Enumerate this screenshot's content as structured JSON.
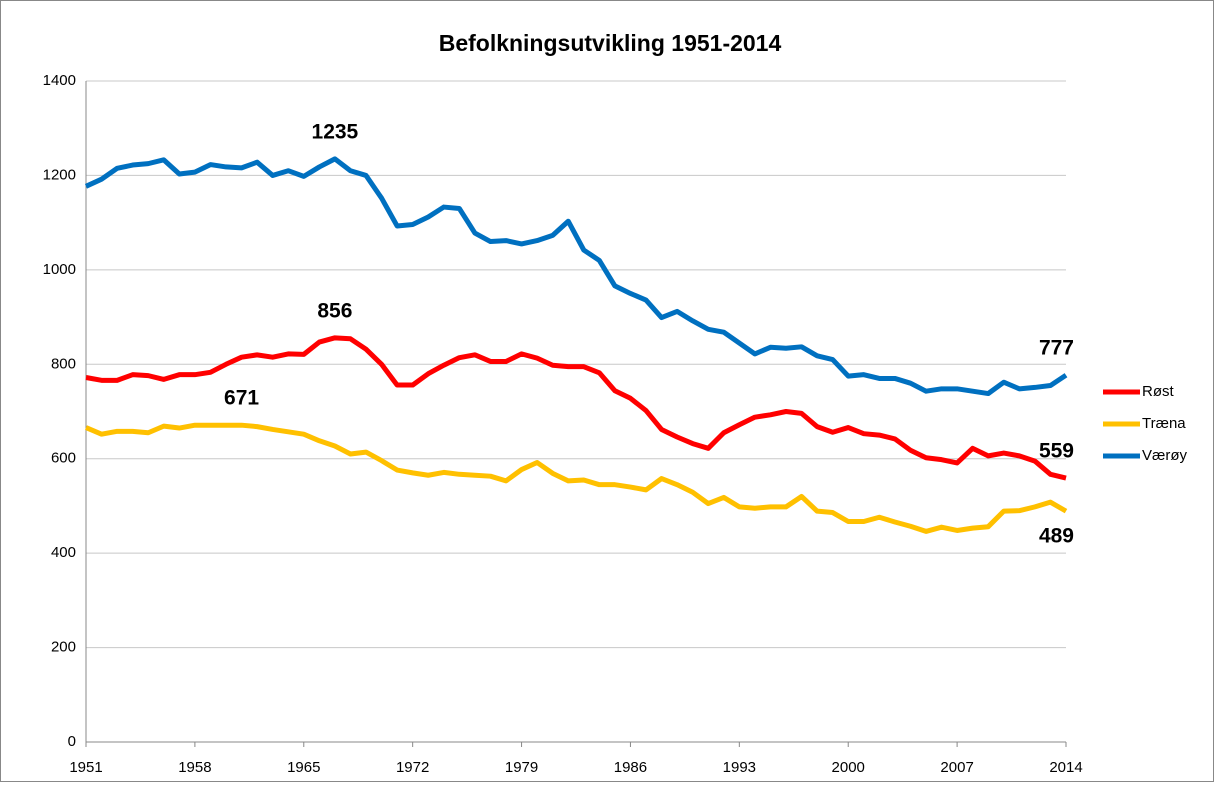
{
  "chart_data": {
    "type": "line",
    "title": "Befolkningsutvikling 1951-2014",
    "x": [
      1951,
      1952,
      1953,
      1954,
      1955,
      1956,
      1957,
      1958,
      1959,
      1960,
      1961,
      1962,
      1963,
      1964,
      1965,
      1966,
      1967,
      1968,
      1969,
      1970,
      1971,
      1972,
      1973,
      1974,
      1975,
      1976,
      1977,
      1978,
      1979,
      1980,
      1981,
      1982,
      1983,
      1984,
      1985,
      1986,
      1987,
      1988,
      1989,
      1990,
      1991,
      1992,
      1993,
      1994,
      1995,
      1996,
      1997,
      1998,
      1999,
      2000,
      2001,
      2002,
      2003,
      2004,
      2005,
      2006,
      2007,
      2008,
      2009,
      2010,
      2011,
      2012,
      2013,
      2014
    ],
    "series": [
      {
        "name": "Røst",
        "color": "#ff0000",
        "values": [
          772,
          766,
          766,
          778,
          776,
          768,
          778,
          778,
          783,
          800,
          815,
          820,
          815,
          822,
          821,
          847,
          856,
          854,
          832,
          800,
          756,
          756,
          780,
          798,
          814,
          820,
          806,
          806,
          822,
          813,
          798,
          795,
          795,
          782,
          744,
          728,
          702,
          662,
          646,
          632,
          622,
          655,
          672,
          688,
          693,
          700,
          696,
          668,
          656,
          666,
          653,
          650,
          642,
          618,
          602,
          598,
          591,
          622,
          606,
          612,
          606,
          595,
          567,
          559
        ]
      },
      {
        "name": "Træna",
        "color": "#ffc000",
        "values": [
          666,
          652,
          658,
          658,
          655,
          669,
          665,
          671,
          671,
          671,
          671,
          668,
          662,
          657,
          652,
          638,
          627,
          610,
          614,
          596,
          576,
          570,
          565,
          571,
          567,
          565,
          563,
          553,
          577,
          592,
          569,
          553,
          555,
          545,
          545,
          540,
          534,
          558,
          545,
          529,
          505,
          518,
          498,
          495,
          498,
          498,
          520,
          489,
          486,
          467,
          467,
          476,
          466,
          457,
          446,
          455,
          448,
          453,
          456,
          489,
          490,
          498,
          508,
          489
        ]
      },
      {
        "name": "Værøy",
        "color": "#0070c0",
        "values": [
          1177,
          1192,
          1215,
          1222,
          1225,
          1233,
          1203,
          1207,
          1223,
          1218,
          1216,
          1228,
          1200,
          1210,
          1198,
          1218,
          1235,
          1210,
          1200,
          1152,
          1093,
          1096,
          1112,
          1133,
          1130,
          1078,
          1060,
          1062,
          1055,
          1062,
          1073,
          1103,
          1042,
          1020,
          966,
          950,
          936,
          899,
          912,
          892,
          874,
          868,
          845,
          822,
          836,
          834,
          837,
          818,
          810,
          775,
          778,
          770,
          770,
          760,
          743,
          748,
          748,
          743,
          738,
          762,
          748,
          751,
          755,
          777
        ]
      }
    ],
    "labels": [
      {
        "series": 2,
        "index": 16,
        "position": "above"
      },
      {
        "series": 2,
        "index": 63,
        "position": "above"
      },
      {
        "series": 0,
        "index": 16,
        "position": "above"
      },
      {
        "series": 0,
        "index": 63,
        "position": "above"
      },
      {
        "series": 1,
        "index": 10,
        "position": "above"
      },
      {
        "series": 1,
        "index": 63,
        "position": "below"
      }
    ],
    "xlim": [
      1951,
      2014
    ],
    "xticks": [
      1951,
      1958,
      1965,
      1972,
      1979,
      1986,
      1993,
      2000,
      2007,
      2014
    ],
    "ylim": [
      0,
      1400
    ],
    "yticks": [
      0,
      200,
      400,
      600,
      800,
      1000,
      1200,
      1400
    ],
    "grid": true,
    "legend": "right"
  }
}
